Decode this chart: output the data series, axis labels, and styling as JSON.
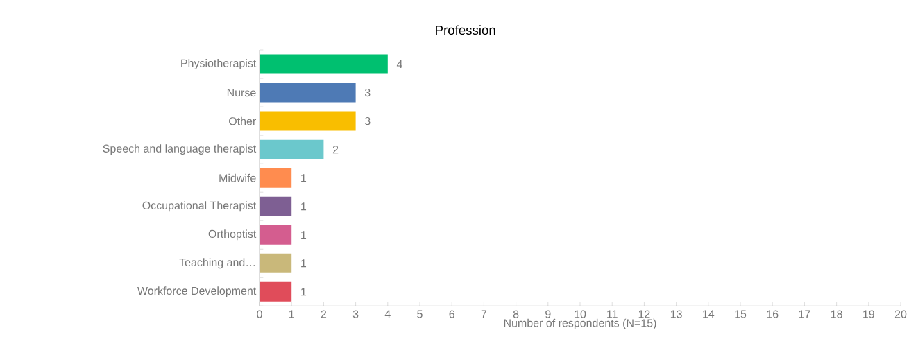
{
  "chart_data": {
    "type": "bar",
    "orientation": "horizontal",
    "title": "Profession",
    "xlabel": "Number of respondents (N=15)",
    "categories": [
      "Physiotherapist",
      "Nurse",
      "Other",
      "Speech and language therapist",
      "Midwife",
      "Occupational Therapist",
      "Orthoptist",
      "Teaching and…",
      "Workforce Development"
    ],
    "values": [
      4,
      3,
      3,
      2,
      1,
      1,
      1,
      1,
      1
    ],
    "colors": [
      "#00c070",
      "#4e7ab5",
      "#f9be00",
      "#6bc8cc",
      "#ff8c4f",
      "#7e5f93",
      "#d45d8f",
      "#c9b87a",
      "#e04c5a"
    ],
    "xlim": [
      0,
      20
    ],
    "xticks": [
      0,
      1,
      2,
      3,
      4,
      5,
      6,
      7,
      8,
      9,
      10,
      11,
      12,
      13,
      14,
      15,
      16,
      17,
      18,
      19,
      20
    ],
    "data_labels": true
  }
}
